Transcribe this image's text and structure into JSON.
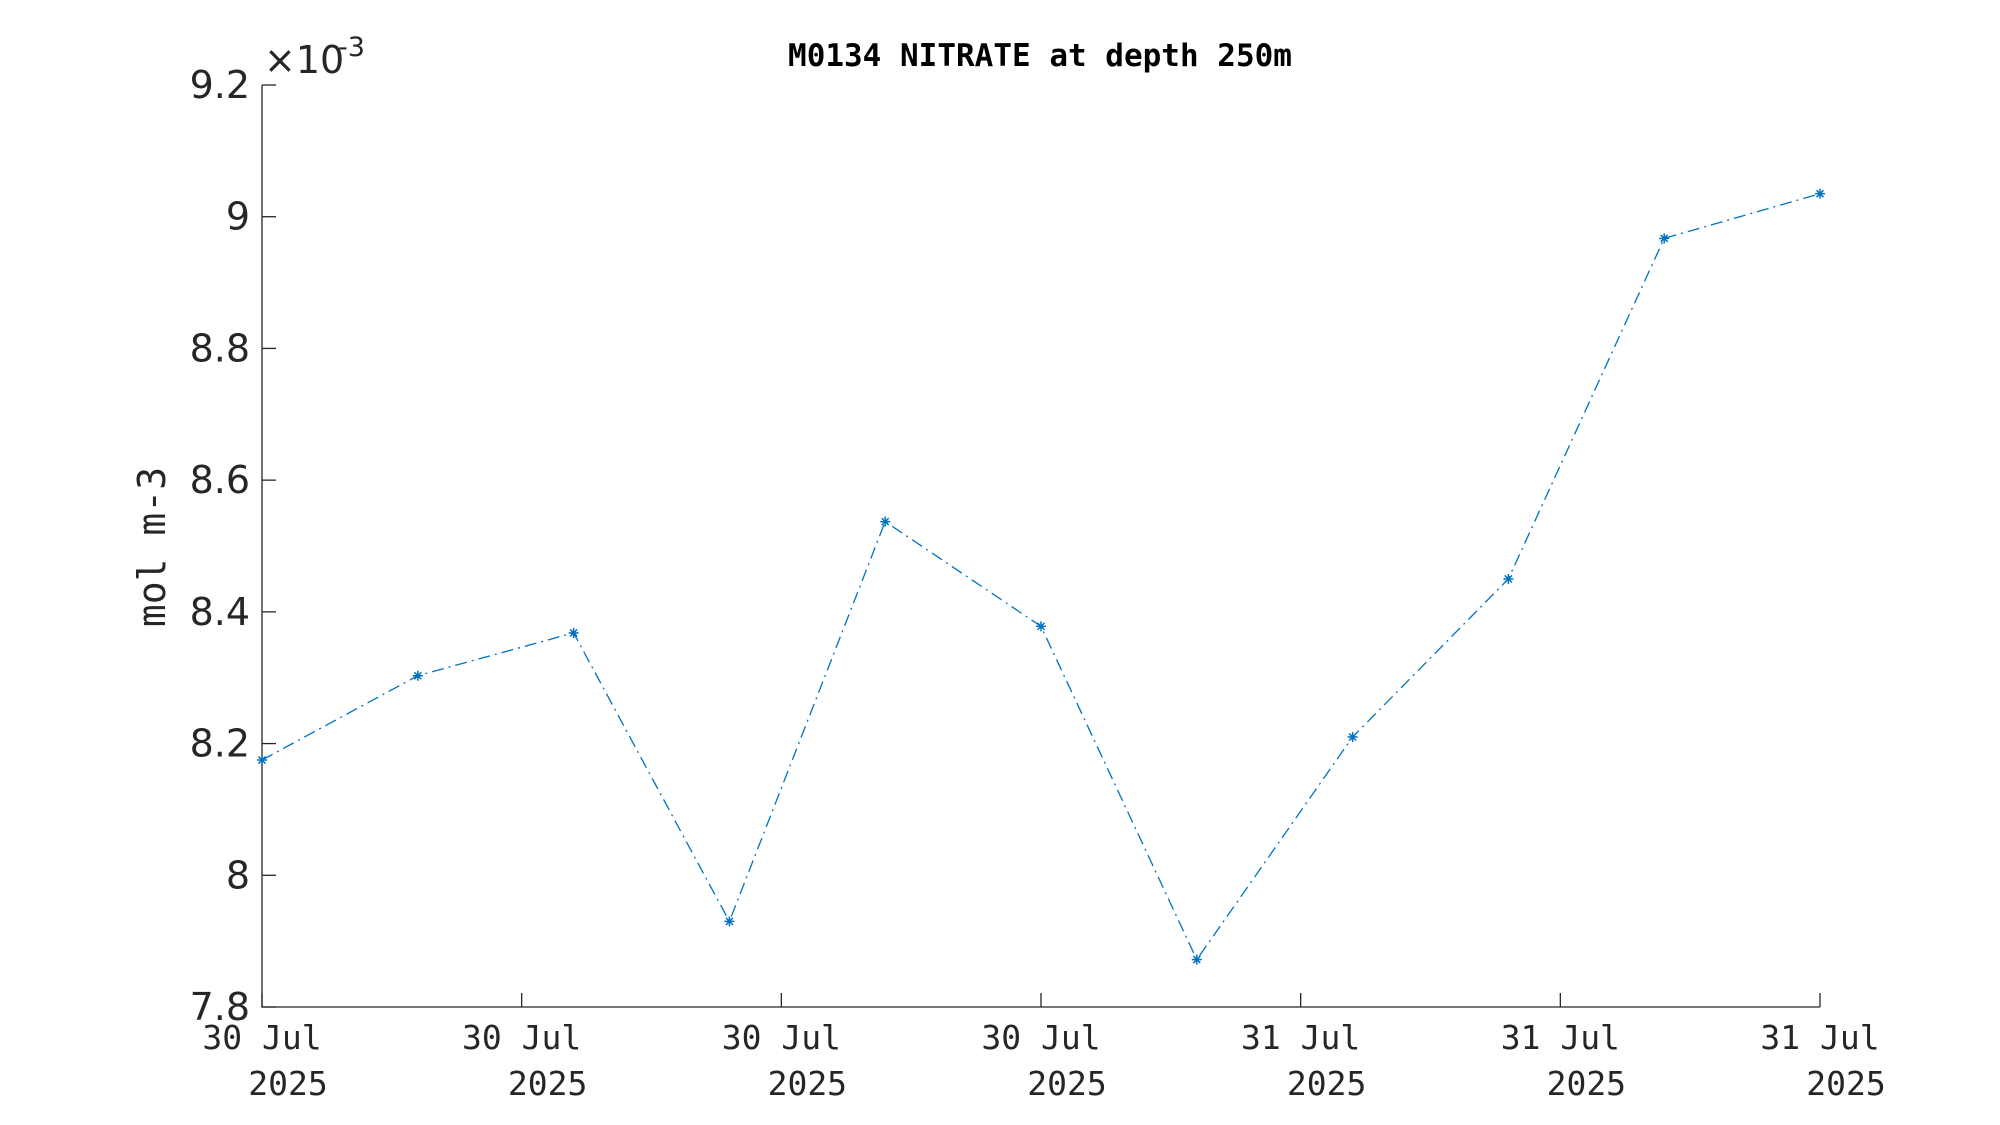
{
  "chart_data": {
    "type": "line",
    "title": "M0134 NITRATE at depth 250m",
    "xlabel": "",
    "ylabel": "mol m-3",
    "y_exponent_base": "×10",
    "y_exponent_power": "-3",
    "ylim": [
      7.8,
      9.2
    ],
    "yticks": [
      7.8,
      8,
      8.2,
      8.4,
      8.6,
      8.8,
      9,
      9.2
    ],
    "ytick_labels": [
      "7.8",
      "8",
      "8.2",
      "8.4",
      "8.6",
      "8.8",
      "9",
      "9.2"
    ],
    "xlim": [
      0,
      6
    ],
    "xticks": [
      0,
      1,
      2,
      3,
      4,
      5,
      6
    ],
    "xtick_labels": [
      [
        "30 Jul",
        "2025"
      ],
      [
        "30 Jul",
        "2025"
      ],
      [
        "30 Jul",
        "2025"
      ],
      [
        "30 Jul",
        "2025"
      ],
      [
        "31 Jul",
        "2025"
      ],
      [
        "31 Jul",
        "2025"
      ],
      [
        "31 Jul",
        "2025"
      ]
    ],
    "grid": false,
    "series": [
      {
        "color": "#0072BD",
        "line_style": "dash-dot",
        "marker": "asterisk",
        "x": [
          0,
          0.6,
          1.2,
          1.8,
          2.4,
          3.0,
          3.6,
          4.2,
          4.8,
          5.4,
          6.0
        ],
        "values": [
          8.175,
          8.303,
          8.368,
          7.93,
          8.537,
          8.378,
          7.872,
          8.21,
          8.45,
          8.967,
          9.035
        ]
      }
    ]
  }
}
